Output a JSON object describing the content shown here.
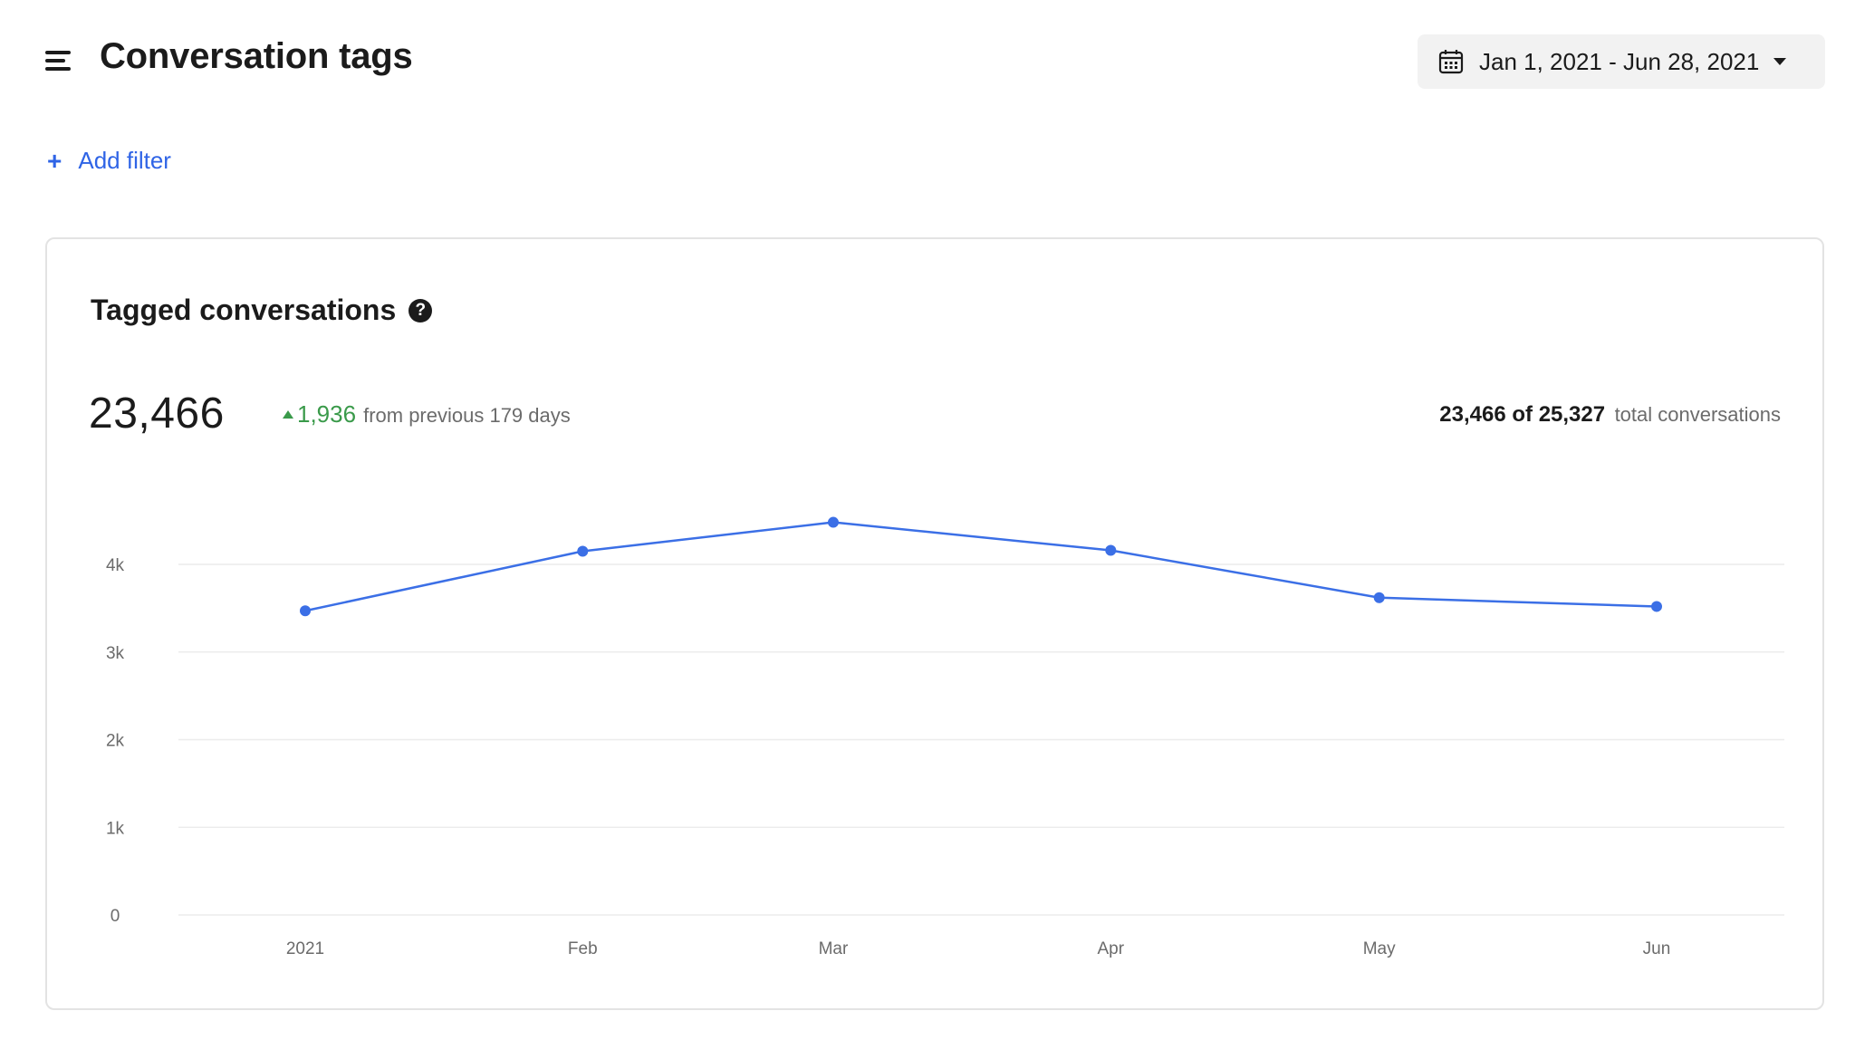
{
  "header": {
    "title": "Conversation tags",
    "menu_icon": "hamburger-menu-icon",
    "date_range": {
      "label": "Jan 1, 2021 - Jun 28, 2021",
      "icon": "calendar-icon"
    }
  },
  "filters": {
    "add_label": "Add filter",
    "icon": "plus-icon"
  },
  "card": {
    "title": "Tagged conversations",
    "help_icon": "help-icon",
    "help_glyph": "?",
    "total": "23,466",
    "delta": {
      "value": "1,936",
      "suffix": "from previous 179 days",
      "direction": "up",
      "color": "#3a9a4a"
    },
    "ratio": {
      "value": "23,466 of 25,327",
      "suffix": "total conversations"
    }
  },
  "colors": {
    "accent": "#2f64e6",
    "series": "#3b6fe6",
    "positive": "#3a9a4a"
  },
  "chart_data": {
    "type": "line",
    "categories": [
      "2021",
      "Feb",
      "Mar",
      "Apr",
      "May",
      "Jun"
    ],
    "series": [
      {
        "values": [
          3470,
          4150,
          4480,
          4160,
          3620,
          3520
        ]
      }
    ],
    "yticks": [
      0,
      1000,
      2000,
      3000,
      4000
    ],
    "ytick_labels": [
      "0",
      "1k",
      "2k",
      "3k",
      "4k"
    ],
    "ylim": [
      0,
      4000
    ],
    "grid": true,
    "legend": "none"
  }
}
